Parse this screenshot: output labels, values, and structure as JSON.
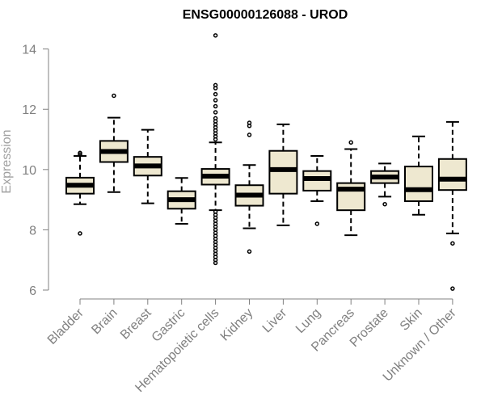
{
  "chart_data": {
    "type": "boxplot",
    "title": "ENSG00000126088 - UROD",
    "xlabel": "",
    "ylabel": "Expression",
    "ylim": [
      6,
      14.5
    ],
    "y_ticks": [
      6,
      8,
      10,
      12,
      14
    ],
    "box_fill": "#eee8d0",
    "categories": [
      "Bladder",
      "Brain",
      "Breast",
      "Gastric",
      "Hematopoietic cells",
      "Kidney",
      "Liver",
      "Lung",
      "Pancreas",
      "Prostate",
      "Skin",
      "Unknown / Other"
    ],
    "boxes": [
      {
        "category": "Bladder",
        "whisker_low": 8.85,
        "q1": 9.2,
        "median": 9.48,
        "q3": 9.73,
        "whisker_high": 10.45,
        "outliers": [
          7.88,
          10.5,
          10.55
        ]
      },
      {
        "category": "Brain",
        "whisker_low": 9.25,
        "q1": 10.25,
        "median": 10.6,
        "q3": 10.95,
        "whisker_high": 11.72,
        "outliers": [
          12.45
        ]
      },
      {
        "category": "Breast",
        "whisker_low": 8.88,
        "q1": 9.8,
        "median": 10.12,
        "q3": 10.42,
        "whisker_high": 11.32,
        "outliers": []
      },
      {
        "category": "Gastric",
        "whisker_low": 8.2,
        "q1": 8.7,
        "median": 9.0,
        "q3": 9.28,
        "whisker_high": 9.72,
        "outliers": []
      },
      {
        "category": "Hematopoietic cells",
        "whisker_low": 8.65,
        "q1": 9.5,
        "median": 9.78,
        "q3": 10.02,
        "whisker_high": 10.9,
        "outliers": [
          14.45,
          12.8,
          12.7,
          12.5,
          12.3,
          12.1,
          11.9,
          11.7,
          11.6,
          11.5,
          11.4,
          11.3,
          11.2,
          11.1,
          11.0,
          8.6,
          8.5,
          8.4,
          8.3,
          8.2,
          8.1,
          8.0,
          7.9,
          7.8,
          7.7,
          7.6,
          7.5,
          7.4,
          7.3,
          7.2,
          7.1,
          7.0,
          6.9
        ]
      },
      {
        "category": "Kidney",
        "whisker_low": 8.05,
        "q1": 8.8,
        "median": 9.15,
        "q3": 9.48,
        "whisker_high": 10.15,
        "outliers": [
          11.55,
          11.45,
          11.15,
          7.28
        ]
      },
      {
        "category": "Liver",
        "whisker_low": 8.15,
        "q1": 9.2,
        "median": 10.0,
        "q3": 10.62,
        "whisker_high": 11.5,
        "outliers": []
      },
      {
        "category": "Lung",
        "whisker_low": 8.95,
        "q1": 9.3,
        "median": 9.7,
        "q3": 9.95,
        "whisker_high": 10.45,
        "outliers": [
          8.2
        ]
      },
      {
        "category": "Pancreas",
        "whisker_low": 7.82,
        "q1": 8.65,
        "median": 9.35,
        "q3": 9.55,
        "whisker_high": 10.68,
        "outliers": [
          10.9
        ]
      },
      {
        "category": "Prostate",
        "whisker_low": 9.1,
        "q1": 9.55,
        "median": 9.75,
        "q3": 9.95,
        "whisker_high": 10.2,
        "outliers": [
          8.85
        ]
      },
      {
        "category": "Skin",
        "whisker_low": 8.5,
        "q1": 8.95,
        "median": 9.33,
        "q3": 10.1,
        "whisker_high": 11.1,
        "outliers": []
      },
      {
        "category": "Unknown / Other",
        "whisker_low": 7.88,
        "q1": 9.32,
        "median": 9.68,
        "q3": 10.35,
        "whisker_high": 11.58,
        "outliers": [
          7.55,
          6.05
        ]
      }
    ]
  }
}
